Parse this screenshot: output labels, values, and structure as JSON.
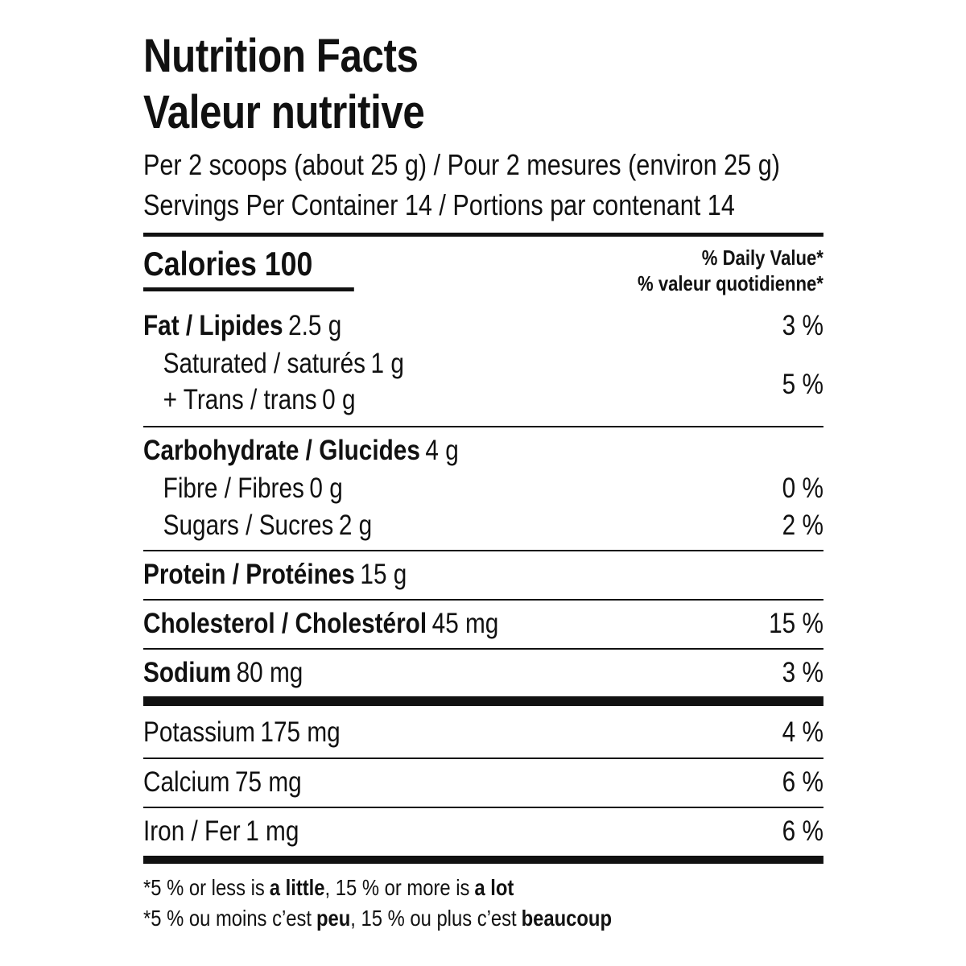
{
  "title": [
    "Nutrition Facts",
    "Valeur nutritive"
  ],
  "serving": [
    "Per 2 scoops (about 25 g) / Pour 2 mesures (environ 25 g)",
    "Servings Per Container 14 / Portions par contenant 14"
  ],
  "calories": "Calories 100",
  "daily_value_header": [
    "% Daily Value*",
    "% valeur quotidienne*"
  ],
  "nutrients": [
    {
      "name": "Fat / Lipides",
      "amount": "2.5 g",
      "dv": "3 %"
    },
    {
      "name": "Saturated / saturés",
      "amount": "1 g"
    },
    {
      "name": "+ Trans / trans",
      "amount": "0 g",
      "dv": "5 %"
    },
    {
      "name": "Carbohydrate / Glucides",
      "amount": "4 g"
    },
    {
      "name": "Fibre / Fibres",
      "amount": "0 g",
      "dv": "0 %"
    },
    {
      "name": "Sugars / Sucres",
      "amount": "2 g",
      "dv": "2 %"
    },
    {
      "name": "Protein / Protéines",
      "amount": "15 g"
    },
    {
      "name": "Cholesterol / Cholestérol",
      "amount": "45 mg",
      "dv": "15 %"
    },
    {
      "name": "Sodium",
      "amount": "80 mg",
      "dv": "3 %"
    },
    {
      "name": "Potassium",
      "amount": "175 mg",
      "dv": "4 %"
    },
    {
      "name": "Calcium",
      "amount": "75 mg",
      "dv": "6 %"
    },
    {
      "name": "Iron / Fer",
      "amount": "1 mg",
      "dv": "6 %"
    }
  ],
  "footnote": [
    [
      "*5 % or less is",
      "a little",
      ", 15 % or more is",
      "a lot"
    ],
    [
      "*5 % ou moins c’est",
      "peu",
      ", 15 % ou plus c’est",
      "beaucoup"
    ]
  ]
}
